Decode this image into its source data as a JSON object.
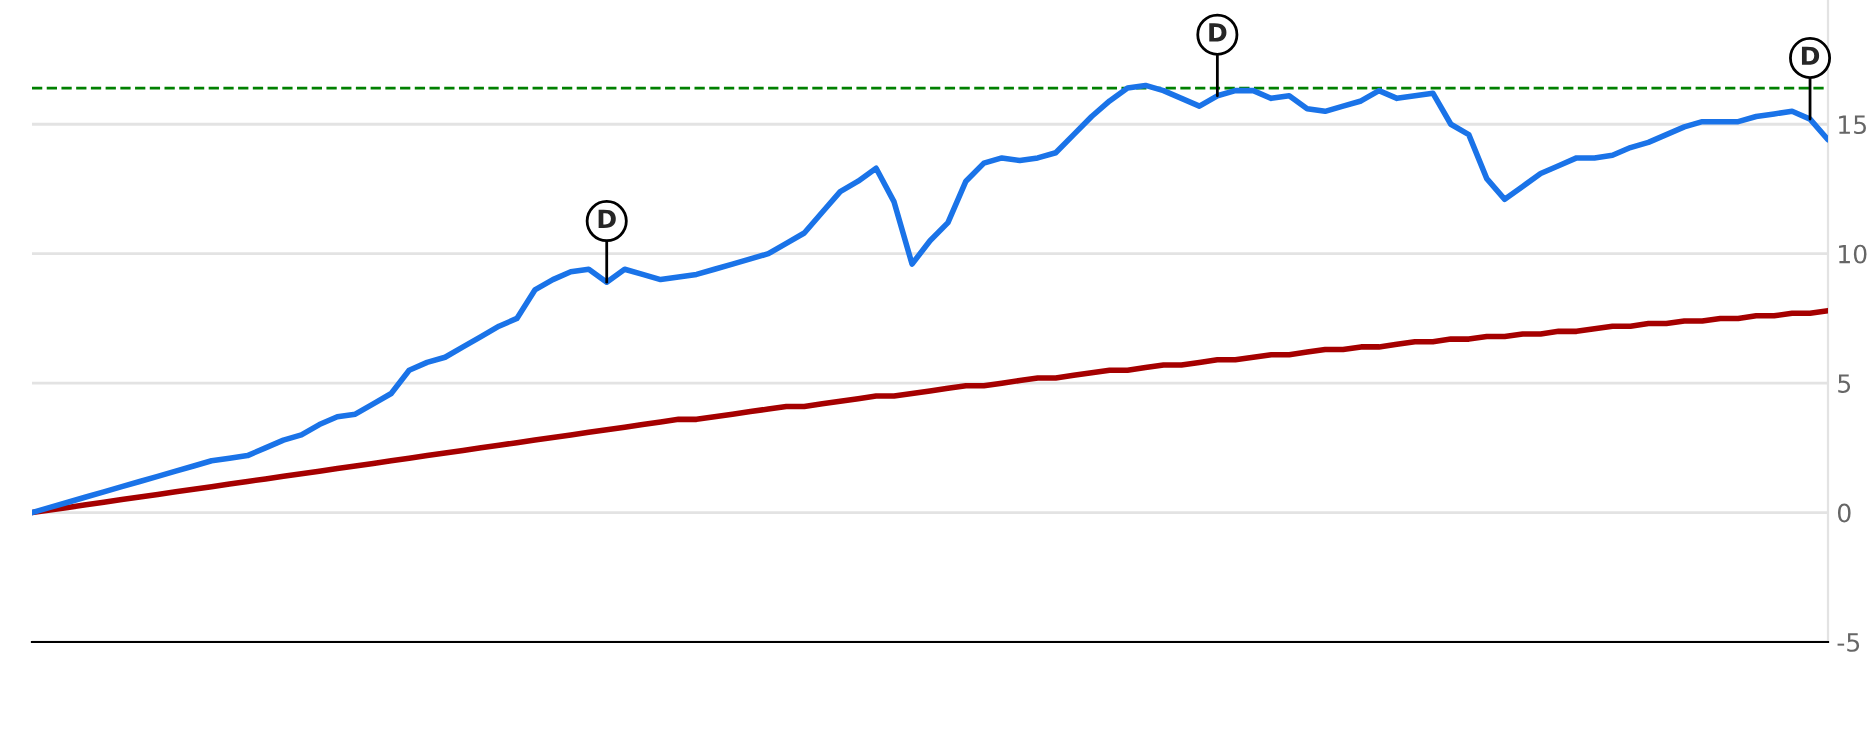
{
  "chart_data": {
    "type": "line",
    "categories": [
      null,
      null,
      null,
      null,
      null,
      null,
      null,
      null,
      null,
      null,
      null,
      null,
      null,
      null,
      null,
      null,
      null,
      null,
      null,
      null,
      null,
      null,
      null,
      null,
      null,
      null,
      null,
      null,
      null,
      null,
      null,
      null,
      null,
      null,
      null,
      null,
      null,
      null,
      null,
      null,
      null,
      null,
      null,
      null,
      null,
      null,
      null,
      null,
      null,
      null,
      null,
      null,
      null,
      null,
      null,
      null,
      null,
      null,
      null,
      null,
      null,
      null,
      null,
      null,
      null,
      null,
      null,
      null,
      null,
      null,
      null,
      null,
      null,
      null,
      null,
      null,
      null,
      null,
      null,
      null,
      null,
      null,
      null,
      null,
      null,
      null,
      null,
      null,
      null,
      null,
      null,
      null,
      null,
      null,
      null,
      null,
      null,
      null,
      null,
      null,
      null
    ],
    "ylim": [
      -5,
      19.8
    ],
    "yticks": [
      -5,
      0,
      5,
      10,
      15
    ],
    "grid": "y",
    "marker": "none",
    "line_style": "solid",
    "series": [
      {
        "color": "#a50000",
        "values": [
          0,
          0.1,
          0.2,
          0.3,
          0.4,
          0.5,
          0.6,
          0.7,
          0.8,
          0.9,
          1.0,
          1.1,
          1.2,
          1.3,
          1.4,
          1.5,
          1.6,
          1.7,
          1.8,
          1.9,
          2.0,
          2.1,
          2.2,
          2.3,
          2.4,
          2.5,
          2.6,
          2.7,
          2.8,
          2.9,
          3.0,
          3.1,
          3.2,
          3.3,
          3.4,
          3.5,
          3.6,
          3.6,
          3.7,
          3.8,
          3.9,
          4.0,
          4.1,
          4.1,
          4.2,
          4.3,
          4.4,
          4.5,
          4.5,
          4.6,
          4.7,
          4.8,
          4.9,
          4.9,
          5.0,
          5.1,
          5.2,
          5.2,
          5.3,
          5.4,
          5.5,
          5.5,
          5.6,
          5.7,
          5.7,
          5.8,
          5.9,
          5.9,
          6.0,
          6.1,
          6.1,
          6.2,
          6.3,
          6.3,
          6.4,
          6.4,
          6.5,
          6.6,
          6.6,
          6.7,
          6.7,
          6.8,
          6.8,
          6.9,
          6.9,
          7.0,
          7.0,
          7.1,
          7.2,
          7.2,
          7.3,
          7.3,
          7.4,
          7.4,
          7.5,
          7.5,
          7.6,
          7.6,
          7.7,
          7.7,
          7.8
        ]
      },
      {
        "color": "#1a73e8",
        "values": [
          0,
          0.2,
          0.4,
          0.6,
          0.8,
          1.0,
          1.2,
          1.4,
          1.6,
          1.8,
          2.0,
          2.1,
          2.2,
          2.5,
          2.8,
          3.0,
          3.4,
          3.7,
          3.8,
          4.2,
          4.6,
          5.5,
          5.8,
          6.0,
          6.4,
          6.8,
          7.2,
          7.5,
          8.6,
          9.0,
          9.3,
          9.4,
          8.9,
          9.4,
          9.2,
          9.0,
          9.1,
          9.2,
          9.4,
          9.6,
          9.8,
          10.0,
          10.4,
          10.8,
          11.6,
          12.4,
          12.8,
          13.3,
          12.0,
          9.6,
          10.5,
          11.2,
          12.8,
          13.5,
          13.7,
          13.6,
          13.7,
          13.9,
          14.6,
          15.3,
          15.9,
          16.4,
          16.5,
          16.3,
          16.0,
          15.7,
          16.1,
          16.3,
          16.3,
          16.0,
          16.1,
          15.6,
          15.5,
          15.7,
          15.9,
          16.3,
          16.0,
          16.1,
          16.2,
          15.0,
          14.6,
          12.9,
          12.1,
          12.6,
          13.1,
          13.4,
          13.7,
          13.7,
          13.8,
          14.1,
          14.3,
          14.6,
          14.9,
          15.1,
          15.1,
          15.1,
          15.3,
          15.4,
          15.5,
          15.2,
          14.4
        ],
        "value_labels": [
          null,
          null,
          null,
          null,
          null,
          null,
          null,
          null,
          null,
          null,
          null,
          null,
          null,
          null,
          null,
          null,
          null,
          null,
          null,
          null,
          null,
          null,
          null,
          null,
          null,
          null,
          null,
          null,
          null,
          null,
          null,
          null,
          "D",
          null,
          null,
          null,
          null,
          null,
          null,
          null,
          null,
          null,
          null,
          null,
          null,
          null,
          null,
          null,
          null,
          null,
          null,
          null,
          null,
          null,
          null,
          null,
          null,
          null,
          null,
          null,
          null,
          null,
          null,
          null,
          null,
          null,
          "D",
          null,
          null,
          null,
          null,
          null,
          null,
          null,
          null,
          null,
          null,
          null,
          null,
          null,
          null,
          null,
          null,
          null,
          null,
          null,
          null,
          null,
          null,
          null,
          null,
          null,
          null,
          null,
          null,
          null,
          null,
          null,
          null,
          "D",
          null
        ]
      }
    ],
    "ref_lines": [
      {
        "axis": "y",
        "value": 16.4,
        "color": "#008000",
        "line_style": "dashed"
      }
    ]
  }
}
